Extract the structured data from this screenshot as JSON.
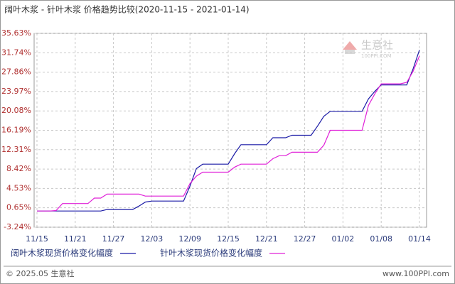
{
  "chart_data": {
    "type": "line",
    "title": "阔叶木浆 - 针叶木浆 价格趋势比较(2020-11-15 - 2021-01-14)",
    "watermark": "生意社",
    "watermark_sub": "100PPI.COM",
    "footer_left": "© 2025.05 生意社",
    "footer_right": "www.100PPI.com",
    "categories": [
      "11/15",
      null,
      null,
      null,
      null,
      null,
      "11/21",
      null,
      null,
      null,
      null,
      null,
      "11/27",
      null,
      null,
      null,
      null,
      null,
      "12/03",
      null,
      null,
      null,
      null,
      null,
      "12/09",
      null,
      null,
      null,
      null,
      null,
      "12/15",
      null,
      null,
      null,
      null,
      null,
      "12/21",
      null,
      null,
      null,
      null,
      null,
      "12/27",
      null,
      null,
      null,
      null,
      null,
      "01/02",
      null,
      null,
      null,
      null,
      null,
      "01/08",
      null,
      null,
      null,
      null,
      null,
      "01/14"
    ],
    "series": [
      {
        "name": "阔叶木浆现货价格变化幅度",
        "color": "#1a1aa6",
        "values": [
          0,
          0,
          0,
          0,
          0,
          0,
          0,
          0,
          0,
          0,
          0,
          0.3,
          0.3,
          0.3,
          0.3,
          0.3,
          1.0,
          1.8,
          2.0,
          2.0,
          2.0,
          2.0,
          2.0,
          2.0,
          5.0,
          8.5,
          9.4,
          9.4,
          9.4,
          9.4,
          9.4,
          11.5,
          13.3,
          13.3,
          13.3,
          13.3,
          13.3,
          14.7,
          14.7,
          14.7,
          15.2,
          15.2,
          15.2,
          15.2,
          17.0,
          19.0,
          20.0,
          20.0,
          20.0,
          20.0,
          20.0,
          20.0,
          22.5,
          24.0,
          25.3,
          25.3,
          25.3,
          25.3,
          25.3,
          28.5,
          32.3
        ]
      },
      {
        "name": "针叶木浆现货价格变化幅度",
        "color": "#e020d8",
        "values": [
          0,
          0,
          0,
          0.1,
          1.5,
          1.5,
          1.5,
          1.5,
          1.5,
          2.6,
          2.6,
          3.4,
          3.4,
          3.4,
          3.4,
          3.4,
          3.4,
          3.0,
          3.0,
          3.0,
          3.0,
          3.0,
          3.0,
          3.0,
          5.5,
          7.0,
          7.8,
          7.8,
          7.8,
          7.8,
          7.8,
          8.8,
          9.4,
          9.4,
          9.4,
          9.4,
          9.4,
          10.5,
          11.1,
          11.1,
          11.8,
          11.8,
          11.8,
          11.8,
          11.8,
          13.2,
          16.2,
          16.2,
          16.2,
          16.2,
          16.2,
          16.2,
          21.2,
          23.5,
          25.5,
          25.5,
          25.5,
          25.5,
          25.8,
          28.0,
          31.1
        ]
      }
    ],
    "ylim": [
      -3.24,
      35.63
    ],
    "yticks": [
      {
        "value": 35.63,
        "label": "35.63%"
      },
      {
        "value": 31.74,
        "label": "31.74%"
      },
      {
        "value": 27.86,
        "label": "27.86%"
      },
      {
        "value": 23.97,
        "label": "23.97%"
      },
      {
        "value": 20.08,
        "label": "20.08%"
      },
      {
        "value": 16.19,
        "label": "16.19%"
      },
      {
        "value": 12.31,
        "label": "12.31%"
      },
      {
        "value": 8.42,
        "label": "8.42%"
      },
      {
        "value": 4.53,
        "label": "4.53%"
      },
      {
        "value": 0.65,
        "label": "0.65%"
      },
      {
        "value": -3.24,
        "label": "-3.24%"
      }
    ],
    "grid": true
  }
}
